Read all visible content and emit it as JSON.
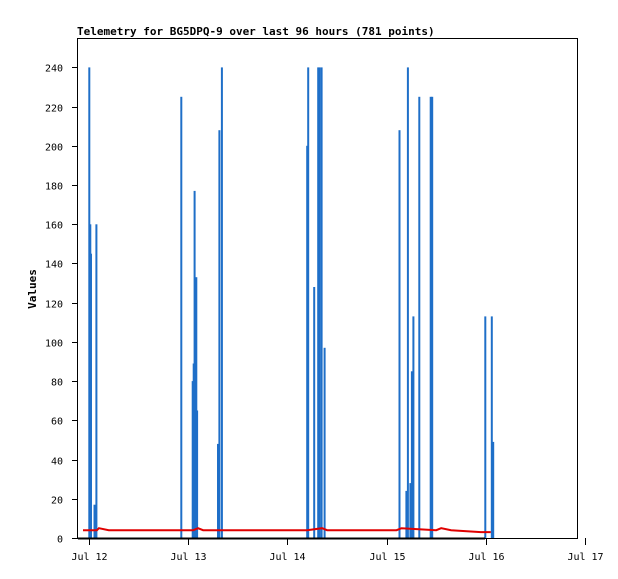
{
  "chart_data": {
    "type": "bar",
    "title": "Telemetry for BG5DPQ-9 over last 96 hours (781 points)",
    "xlabel": "",
    "ylabel": "Values",
    "ylim": [
      0,
      255
    ],
    "xlim": [
      0,
      5
    ],
    "x_tick_labels": [
      "Jul 12",
      "Jul 13",
      "Jul 14",
      "Jul 15",
      "Jul 16",
      "Jul 17"
    ],
    "y_ticks": [
      0,
      20,
      40,
      60,
      80,
      100,
      120,
      140,
      160,
      180,
      200,
      220,
      240
    ],
    "grid": false,
    "colors": {
      "bars": "#1f6fc8",
      "line": "#e00000",
      "baseline": "#000000"
    },
    "series": [
      {
        "kind": "bars",
        "points": [
          {
            "x": 0.003,
            "y": 240
          },
          {
            "x": 0.013,
            "y": 160
          },
          {
            "x": 0.02,
            "y": 145
          },
          {
            "x": 0.055,
            "y": 17
          },
          {
            "x": 0.075,
            "y": 160
          },
          {
            "x": 0.93,
            "y": 225
          },
          {
            "x": 1.045,
            "y": 80
          },
          {
            "x": 1.055,
            "y": 89
          },
          {
            "x": 1.065,
            "y": 177
          },
          {
            "x": 1.075,
            "y": 45
          },
          {
            "x": 1.082,
            "y": 133
          },
          {
            "x": 1.09,
            "y": 65
          },
          {
            "x": 1.3,
            "y": 48
          },
          {
            "x": 1.315,
            "y": 208
          },
          {
            "x": 1.34,
            "y": 240
          },
          {
            "x": 2.2,
            "y": 200
          },
          {
            "x": 2.21,
            "y": 240
          },
          {
            "x": 2.27,
            "y": 128
          },
          {
            "x": 2.31,
            "y": 240
          },
          {
            "x": 2.325,
            "y": 240
          },
          {
            "x": 2.345,
            "y": 240
          },
          {
            "x": 2.375,
            "y": 97
          },
          {
            "x": 3.13,
            "y": 208
          },
          {
            "x": 3.2,
            "y": 24
          },
          {
            "x": 3.215,
            "y": 240
          },
          {
            "x": 3.24,
            "y": 28
          },
          {
            "x": 3.255,
            "y": 85
          },
          {
            "x": 3.27,
            "y": 113
          },
          {
            "x": 3.33,
            "y": 225
          },
          {
            "x": 3.445,
            "y": 225
          },
          {
            "x": 3.46,
            "y": 225
          },
          {
            "x": 3.995,
            "y": 113
          },
          {
            "x": 4.06,
            "y": 113
          },
          {
            "x": 4.075,
            "y": 49
          }
        ]
      },
      {
        "kind": "line",
        "points": [
          {
            "x": -0.06,
            "y": 4
          },
          {
            "x": 0.08,
            "y": 4
          },
          {
            "x": 0.1,
            "y": 5
          },
          {
            "x": 0.2,
            "y": 4
          },
          {
            "x": 1.05,
            "y": 4
          },
          {
            "x": 1.1,
            "y": 5
          },
          {
            "x": 1.15,
            "y": 4
          },
          {
            "x": 2.2,
            "y": 4
          },
          {
            "x": 2.35,
            "y": 5
          },
          {
            "x": 2.4,
            "y": 4
          },
          {
            "x": 3.1,
            "y": 4
          },
          {
            "x": 3.15,
            "y": 5
          },
          {
            "x": 3.5,
            "y": 4
          },
          {
            "x": 3.55,
            "y": 5
          },
          {
            "x": 3.65,
            "y": 4
          },
          {
            "x": 3.95,
            "y": 3
          },
          {
            "x": 4.05,
            "y": 3
          }
        ]
      }
    ]
  }
}
